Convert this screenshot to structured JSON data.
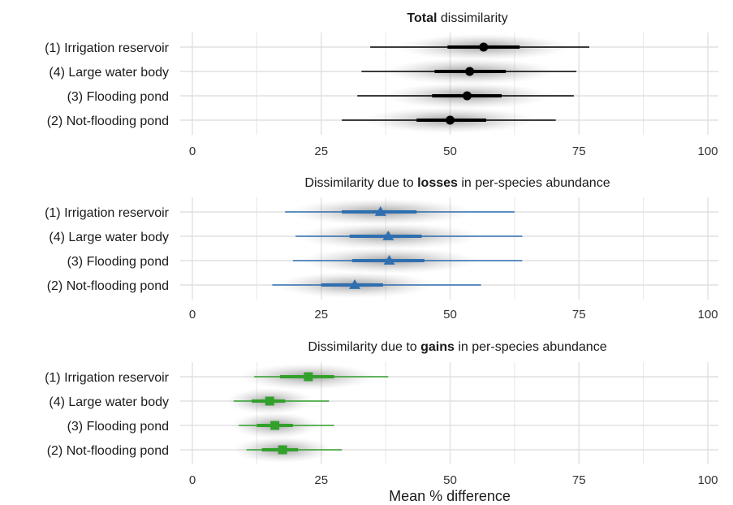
{
  "chart_data": {
    "type": "interval",
    "x_axis": {
      "label": "Mean % difference",
      "lim": [
        0,
        100
      ],
      "ticks": [
        0,
        25,
        50,
        75,
        100
      ]
    },
    "grid": true,
    "categories": [
      "(1) Irrigation reservoir",
      "(4) Large water body",
      "(3) Flooding pond",
      "(2) Not-flooding pond"
    ],
    "panels": [
      {
        "title_bold": "Total",
        "title_prefix": "",
        "title_suffix": " dissimilarity",
        "color": "#000000",
        "marker": "circle",
        "rows": [
          {
            "category": "(1) Irrigation reservoir",
            "mean": 56.5,
            "inner": [
              49.5,
              63.5
            ],
            "outer": [
              34.5,
              77.0
            ]
          },
          {
            "category": "(4) Large water body",
            "mean": 53.8,
            "inner": [
              47.0,
              60.8
            ],
            "outer": [
              32.8,
              74.5
            ]
          },
          {
            "category": "(3) Flooding pond",
            "mean": 53.3,
            "inner": [
              46.5,
              60.0
            ],
            "outer": [
              32.0,
              74.0
            ]
          },
          {
            "category": "(2) Not-flooding pond",
            "mean": 50.0,
            "inner": [
              43.5,
              57.0
            ],
            "outer": [
              29.0,
              70.5
            ]
          }
        ]
      },
      {
        "title_prefix": "Dissimilarity due to ",
        "title_bold": "losses",
        "title_suffix": " in per-species abundance",
        "color": "#2f6fb0",
        "marker": "triangle",
        "rows": [
          {
            "category": "(1) Irrigation reservoir",
            "mean": 36.5,
            "inner": [
              29.0,
              43.5
            ],
            "outer": [
              18.0,
              62.5
            ]
          },
          {
            "category": "(4) Large water body",
            "mean": 38.0,
            "inner": [
              30.5,
              44.5
            ],
            "outer": [
              20.0,
              64.0
            ]
          },
          {
            "category": "(3) Flooding pond",
            "mean": 38.2,
            "inner": [
              31.0,
              45.0
            ],
            "outer": [
              19.5,
              64.0
            ]
          },
          {
            "category": "(2) Not-flooding pond",
            "mean": 31.5,
            "inner": [
              25.0,
              37.0
            ],
            "outer": [
              15.5,
              56.0
            ]
          }
        ]
      },
      {
        "title_prefix": "Dissimilarity due to ",
        "title_bold": "gains",
        "title_suffix": " in per-species abundance",
        "color": "#33a02c",
        "marker": "square",
        "rows": [
          {
            "category": "(1) Irrigation reservoir",
            "mean": 22.5,
            "inner": [
              17.0,
              27.5
            ],
            "outer": [
              12.0,
              38.0
            ]
          },
          {
            "category": "(4) Large water body",
            "mean": 15.0,
            "inner": [
              11.5,
              18.0
            ],
            "outer": [
              8.0,
              26.5
            ]
          },
          {
            "category": "(3) Flooding pond",
            "mean": 16.0,
            "inner": [
              12.5,
              19.5
            ],
            "outer": [
              9.0,
              27.5
            ]
          },
          {
            "category": "(2) Not-flooding pond",
            "mean": 17.5,
            "inner": [
              13.5,
              20.5
            ],
            "outer": [
              10.5,
              29.0
            ]
          }
        ]
      }
    ]
  }
}
